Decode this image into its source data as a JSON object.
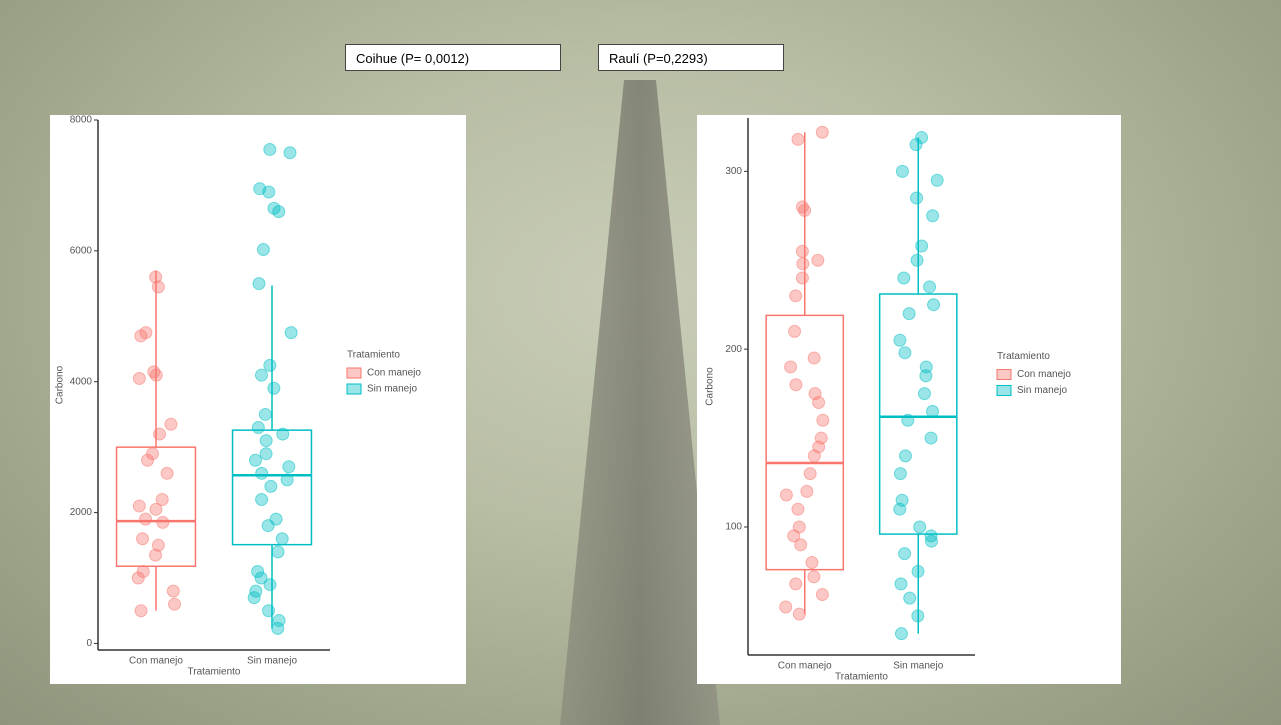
{
  "labels": [
    "Coihue (P= 0,0012)",
    "Raulí (P=0,2293)"
  ],
  "chart_data": [
    {
      "type": "box",
      "x_label": "Tratamiento",
      "y_label": "Carbono",
      "legend_title": "Tratamiento",
      "categories": [
        "Con manejo",
        "Sin manejo"
      ],
      "ylim": [
        -100,
        8000
      ],
      "yticks": [
        0,
        2000,
        4000,
        6000,
        8000
      ],
      "series": [
        {
          "name": "Con manejo",
          "color": "#f8766d",
          "whisker_low": 500,
          "q1": 1180,
          "median": 1870,
          "q3": 3000,
          "whisker_high": 5700,
          "values": [
            5600,
            5450,
            4700,
            4750,
            4150,
            4100,
            4050,
            3350,
            3200,
            2900,
            2800,
            2600,
            2200,
            2100,
            2050,
            1900,
            1850,
            1600,
            1500,
            1350,
            1100,
            1000,
            800,
            600,
            500
          ]
        },
        {
          "name": "Sin manejo",
          "color": "#00bfc4",
          "whisker_low": 230,
          "q1": 1510,
          "median": 2570,
          "q3": 3260,
          "whisker_high": 5470,
          "values": [
            7550,
            7500,
            6950,
            6900,
            6650,
            6600,
            6020,
            5500,
            4750,
            4250,
            4100,
            3900,
            3500,
            3300,
            3200,
            3100,
            2900,
            2800,
            2700,
            2600,
            2500,
            2400,
            2200,
            1900,
            1800,
            1600,
            1400,
            1100,
            1000,
            900,
            800,
            700,
            500,
            350,
            230
          ]
        }
      ]
    },
    {
      "type": "box",
      "x_label": "Tratamiento",
      "y_label": "Carbono",
      "legend_title": "Tratamiento",
      "categories": [
        "Con manejo",
        "Sin manejo"
      ],
      "ylim": [
        28,
        330
      ],
      "yticks": [
        100,
        200,
        300
      ],
      "series": [
        {
          "name": "Con manejo",
          "color": "#f8766d",
          "whisker_low": 51,
          "q1": 76,
          "median": 136,
          "q3": 219,
          "whisker_high": 322,
          "values": [
            322,
            318,
            280,
            278,
            255,
            250,
            248,
            240,
            230,
            210,
            195,
            190,
            180,
            175,
            170,
            160,
            150,
            145,
            140,
            130,
            120,
            118,
            110,
            100,
            95,
            90,
            80,
            72,
            68,
            62,
            55,
            51
          ]
        },
        {
          "name": "Sin manejo",
          "color": "#00bfc4",
          "whisker_low": 40,
          "q1": 96,
          "median": 162,
          "q3": 231,
          "whisker_high": 319,
          "values": [
            319,
            315,
            300,
            295,
            285,
            275,
            258,
            250,
            240,
            235,
            225,
            220,
            205,
            198,
            190,
            185,
            175,
            165,
            160,
            150,
            140,
            130,
            115,
            110,
            100,
            95,
            92,
            85,
            75,
            68,
            60,
            50,
            40
          ]
        }
      ]
    }
  ]
}
